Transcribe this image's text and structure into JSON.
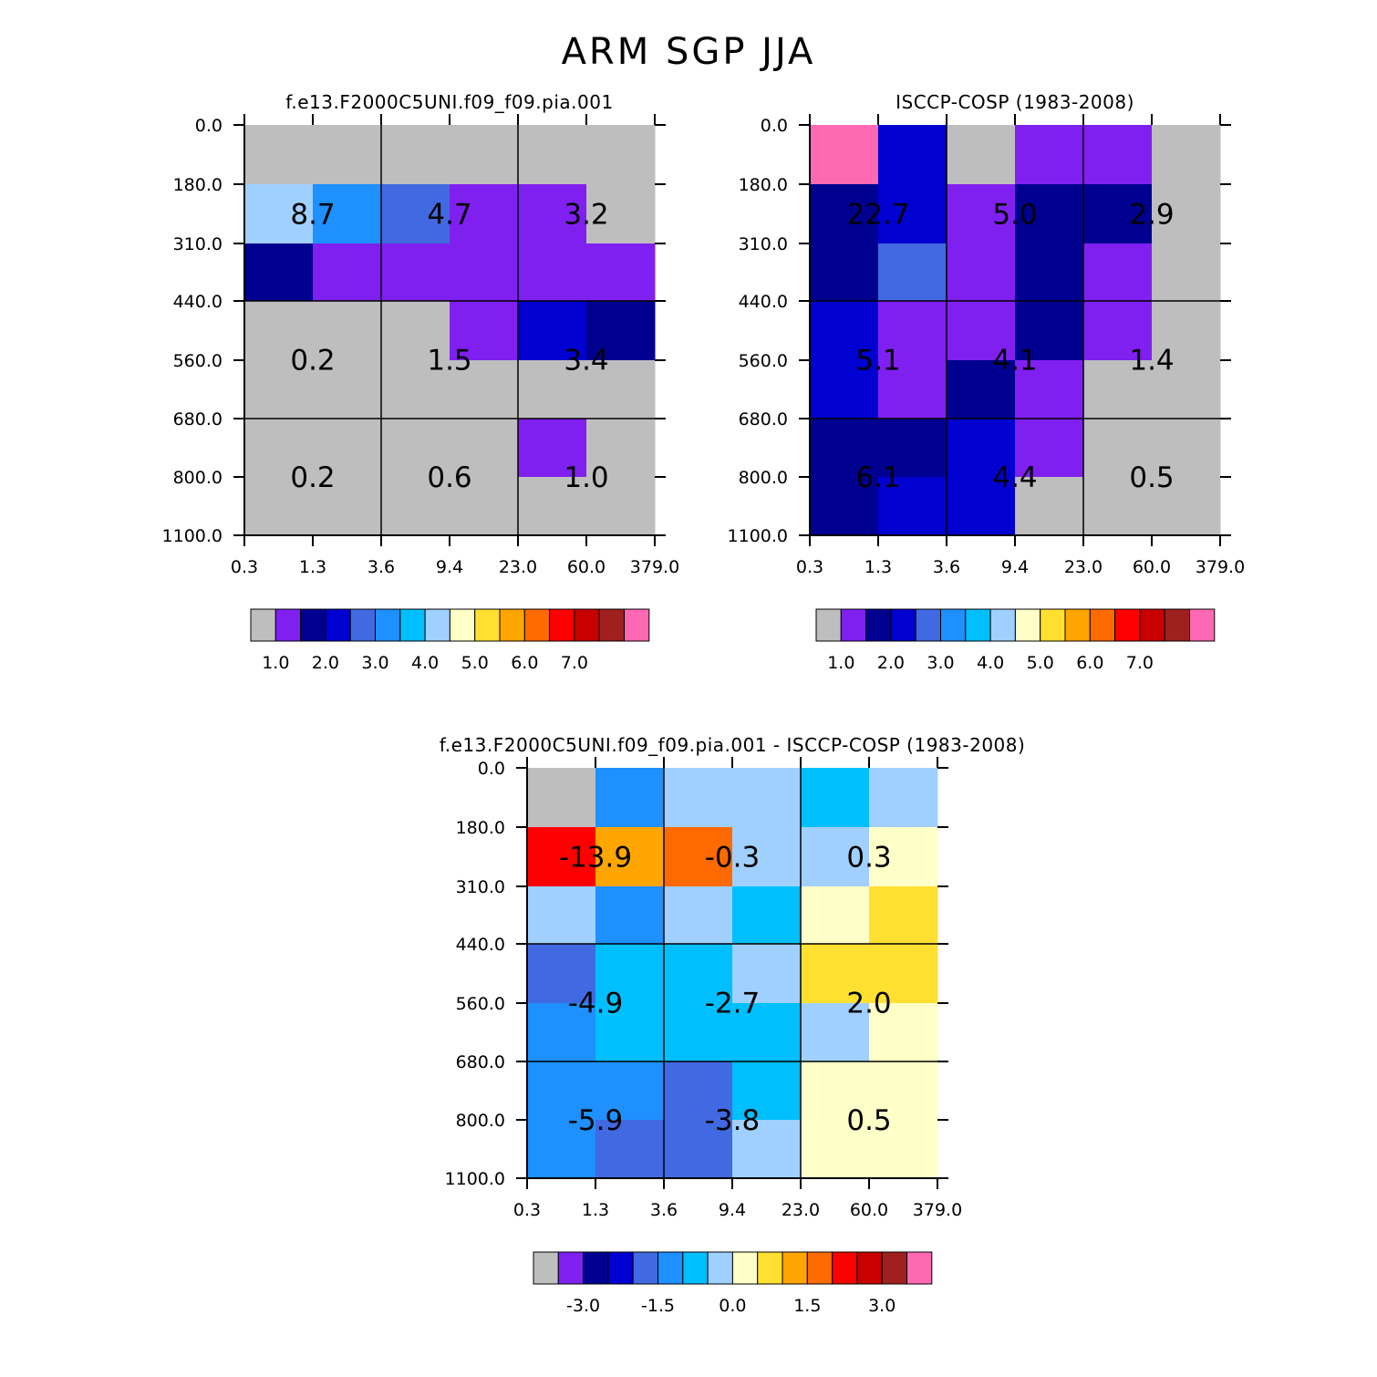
{
  "title": "ARM SGP JJA",
  "colors": {
    "palette": [
      "#bebebe",
      "#8020f0",
      "#000090",
      "#0000d0",
      "#4169e1",
      "#1e90ff",
      "#00bfff",
      "#a0d0ff",
      "#ffffc8",
      "#ffe030",
      "#ffa500",
      "#ff6a00",
      "#ff0000",
      "#c80000",
      "#a02020",
      "#ff69b4"
    ],
    "grid_line": "#000000"
  },
  "chart_data": [
    {
      "type": "heatmap",
      "title": "f.e13.F2000C5UNI.f09_f09.pia.001",
      "x_tick_labels": [
        "0.3",
        "1.3",
        "3.6",
        "9.4",
        "23.0",
        "60.0",
        "379.0"
      ],
      "y_tick_labels": [
        "0.0",
        "180.0",
        "310.0",
        "440.0",
        "560.0",
        "680.0",
        "800.0",
        "1100.0"
      ],
      "cells": [
        [
          0,
          0,
          0,
          0,
          0,
          0
        ],
        [
          7,
          5,
          4,
          1,
          1,
          0
        ],
        [
          2,
          1,
          1,
          1,
          1,
          1
        ],
        [
          0,
          0,
          0,
          1,
          3,
          2
        ],
        [
          0,
          0,
          0,
          0,
          0,
          0
        ],
        [
          0,
          0,
          0,
          0,
          1,
          0
        ],
        [
          0,
          0,
          0,
          0,
          0,
          0
        ]
      ],
      "block_values": [
        [
          "8.7",
          "4.7",
          "3.2"
        ],
        [
          "0.2",
          "1.5",
          "3.4"
        ],
        [
          "0.2",
          "0.6",
          "1.0"
        ]
      ],
      "colorbar_labels": [
        "1.0",
        "2.0",
        "3.0",
        "4.0",
        "5.0",
        "6.0",
        "7.0"
      ]
    },
    {
      "type": "heatmap",
      "title": "ISCCP-COSP (1983-2008)",
      "x_tick_labels": [
        "0.3",
        "1.3",
        "3.6",
        "9.4",
        "23.0",
        "60.0",
        "379.0"
      ],
      "y_tick_labels": [
        "0.0",
        "180.0",
        "310.0",
        "440.0",
        "560.0",
        "680.0",
        "800.0",
        "1100.0"
      ],
      "cells": [
        [
          15,
          3,
          0,
          1,
          1,
          0
        ],
        [
          2,
          3,
          1,
          2,
          2,
          0
        ],
        [
          2,
          4,
          1,
          2,
          1,
          0
        ],
        [
          3,
          1,
          1,
          2,
          1,
          0
        ],
        [
          3,
          1,
          2,
          1,
          0,
          0
        ],
        [
          2,
          2,
          3,
          1,
          0,
          0
        ],
        [
          2,
          3,
          3,
          0,
          0,
          0
        ]
      ],
      "block_values": [
        [
          "22.7",
          "5.0",
          "2.9"
        ],
        [
          "5.1",
          "4.1",
          "1.4"
        ],
        [
          "6.1",
          "4.4",
          "0.5"
        ]
      ],
      "colorbar_labels": [
        "1.0",
        "2.0",
        "3.0",
        "4.0",
        "5.0",
        "6.0",
        "7.0"
      ]
    },
    {
      "type": "heatmap",
      "title": "f.e13.F2000C5UNI.f09_f09.pia.001 - ISCCP-COSP (1983-2008)",
      "x_tick_labels": [
        "0.3",
        "1.3",
        "3.6",
        "9.4",
        "23.0",
        "60.0",
        "379.0"
      ],
      "y_tick_labels": [
        "0.0",
        "180.0",
        "310.0",
        "440.0",
        "560.0",
        "680.0",
        "800.0",
        "1100.0"
      ],
      "cells": [
        [
          0,
          5,
          7,
          7,
          6,
          7
        ],
        [
          12,
          10,
          11,
          7,
          7,
          8
        ],
        [
          7,
          5,
          7,
          6,
          8,
          9
        ],
        [
          4,
          6,
          6,
          7,
          9,
          9
        ],
        [
          5,
          6,
          6,
          6,
          7,
          8
        ],
        [
          5,
          5,
          4,
          6,
          8,
          8
        ],
        [
          5,
          4,
          4,
          7,
          8,
          8
        ]
      ],
      "block_values": [
        [
          "-13.9",
          "-0.3",
          "0.3"
        ],
        [
          "-4.9",
          "-2.7",
          "2.0"
        ],
        [
          "-5.9",
          "-3.8",
          "0.5"
        ]
      ],
      "colorbar_labels": [
        "-3.0",
        "-1.5",
        "0.0",
        "1.5",
        "3.0"
      ]
    }
  ]
}
